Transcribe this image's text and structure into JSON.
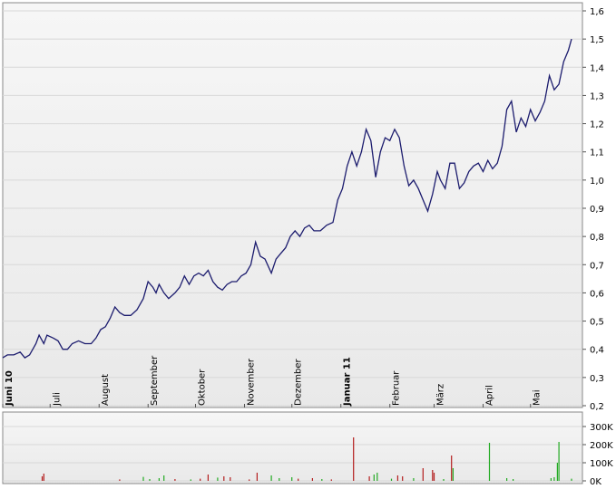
{
  "chart_data": [
    {
      "type": "line",
      "title": "",
      "xlabel": "",
      "ylabel": "",
      "ylim": [
        0.2,
        1.6
      ],
      "y_ticks": [
        "0,2",
        "0,3",
        "0,4",
        "0,5",
        "0,6",
        "0,7",
        "0,8",
        "0,9",
        "1,0",
        "1,1",
        "1,2",
        "1,3",
        "1,4",
        "1,5",
        "1,6"
      ],
      "y_tick_values": [
        0.2,
        0.3,
        0.4,
        0.5,
        0.6,
        0.7,
        0.8,
        0.9,
        1.0,
        1.1,
        1.2,
        1.3,
        1.4,
        1.5,
        1.6
      ],
      "x_range": [
        "2010-06-01",
        "2011-05-31"
      ],
      "x_ticks": [
        {
          "label": "Juni 10",
          "date": "2010-06-01",
          "bold": true
        },
        {
          "label": "Juli",
          "date": "2010-07-01",
          "bold": false
        },
        {
          "label": "August",
          "date": "2010-08-01",
          "bold": false
        },
        {
          "label": "September",
          "date": "2010-09-01",
          "bold": false
        },
        {
          "label": "Oktober",
          "date": "2010-10-01",
          "bold": false
        },
        {
          "label": "November",
          "date": "2010-11-01",
          "bold": false
        },
        {
          "label": "Dezember",
          "date": "2010-12-01",
          "bold": false
        },
        {
          "label": "Januar 11",
          "date": "2011-01-01",
          "bold": true
        },
        {
          "label": "Februar",
          "date": "2011-02-01",
          "bold": false
        },
        {
          "label": "März",
          "date": "2011-03-01",
          "bold": false
        },
        {
          "label": "April",
          "date": "2011-04-01",
          "bold": false
        },
        {
          "label": "Mai",
          "date": "2011-05-01",
          "bold": false
        }
      ],
      "grid": true,
      "line_color": "#1c1c6e",
      "series": [
        {
          "points": [
            [
              "2010-06-01",
              0.37
            ],
            [
              "2010-06-04",
              0.38
            ],
            [
              "2010-06-08",
              0.38
            ],
            [
              "2010-06-12",
              0.39
            ],
            [
              "2010-06-15",
              0.37
            ],
            [
              "2010-06-18",
              0.38
            ],
            [
              "2010-06-22",
              0.42
            ],
            [
              "2010-06-24",
              0.45
            ],
            [
              "2010-06-27",
              0.42
            ],
            [
              "2010-06-29",
              0.45
            ],
            [
              "2010-07-03",
              0.44
            ],
            [
              "2010-07-06",
              0.43
            ],
            [
              "2010-07-09",
              0.4
            ],
            [
              "2010-07-12",
              0.4
            ],
            [
              "2010-07-15",
              0.42
            ],
            [
              "2010-07-19",
              0.43
            ],
            [
              "2010-07-23",
              0.42
            ],
            [
              "2010-07-27",
              0.42
            ],
            [
              "2010-07-30",
              0.44
            ],
            [
              "2010-08-02",
              0.47
            ],
            [
              "2010-08-05",
              0.48
            ],
            [
              "2010-08-08",
              0.51
            ],
            [
              "2010-08-11",
              0.55
            ],
            [
              "2010-08-14",
              0.53
            ],
            [
              "2010-08-17",
              0.52
            ],
            [
              "2010-08-21",
              0.52
            ],
            [
              "2010-08-25",
              0.54
            ],
            [
              "2010-08-29",
              0.58
            ],
            [
              "2010-09-01",
              0.64
            ],
            [
              "2010-09-04",
              0.62
            ],
            [
              "2010-09-06",
              0.6
            ],
            [
              "2010-09-08",
              0.63
            ],
            [
              "2010-09-11",
              0.6
            ],
            [
              "2010-09-14",
              0.58
            ],
            [
              "2010-09-18",
              0.6
            ],
            [
              "2010-09-21",
              0.62
            ],
            [
              "2010-09-24",
              0.66
            ],
            [
              "2010-09-27",
              0.63
            ],
            [
              "2010-09-30",
              0.66
            ],
            [
              "2010-10-03",
              0.67
            ],
            [
              "2010-10-06",
              0.66
            ],
            [
              "2010-10-09",
              0.68
            ],
            [
              "2010-10-12",
              0.64
            ],
            [
              "2010-10-15",
              0.62
            ],
            [
              "2010-10-18",
              0.61
            ],
            [
              "2010-10-21",
              0.63
            ],
            [
              "2010-10-24",
              0.64
            ],
            [
              "2010-10-27",
              0.64
            ],
            [
              "2010-10-30",
              0.66
            ],
            [
              "2010-11-02",
              0.67
            ],
            [
              "2010-11-05",
              0.7
            ],
            [
              "2010-11-08",
              0.78
            ],
            [
              "2010-11-11",
              0.73
            ],
            [
              "2010-11-14",
              0.72
            ],
            [
              "2010-11-18",
              0.67
            ],
            [
              "2010-11-21",
              0.72
            ],
            [
              "2010-11-24",
              0.74
            ],
            [
              "2010-11-27",
              0.76
            ],
            [
              "2010-11-30",
              0.8
            ],
            [
              "2010-12-03",
              0.82
            ],
            [
              "2010-12-06",
              0.8
            ],
            [
              "2010-12-09",
              0.83
            ],
            [
              "2010-12-12",
              0.84
            ],
            [
              "2010-12-15",
              0.82
            ],
            [
              "2010-12-19",
              0.82
            ],
            [
              "2010-12-23",
              0.84
            ],
            [
              "2010-12-27",
              0.85
            ],
            [
              "2010-12-30",
              0.93
            ],
            [
              "2011-01-02",
              0.97
            ],
            [
              "2011-01-05",
              1.05
            ],
            [
              "2011-01-08",
              1.1
            ],
            [
              "2011-01-11",
              1.05
            ],
            [
              "2011-01-14",
              1.1
            ],
            [
              "2011-01-17",
              1.18
            ],
            [
              "2011-01-20",
              1.14
            ],
            [
              "2011-01-23",
              1.01
            ],
            [
              "2011-01-26",
              1.1
            ],
            [
              "2011-01-29",
              1.15
            ],
            [
              "2011-02-01",
              1.14
            ],
            [
              "2011-02-04",
              1.18
            ],
            [
              "2011-02-07",
              1.15
            ],
            [
              "2011-02-10",
              1.05
            ],
            [
              "2011-02-13",
              0.98
            ],
            [
              "2011-02-16",
              1.0
            ],
            [
              "2011-02-19",
              0.97
            ],
            [
              "2011-02-22",
              0.93
            ],
            [
              "2011-02-25",
              0.89
            ],
            [
              "2011-02-28",
              0.95
            ],
            [
              "2011-03-03",
              1.03
            ],
            [
              "2011-03-05",
              1.0
            ],
            [
              "2011-03-08",
              0.97
            ],
            [
              "2011-03-11",
              1.06
            ],
            [
              "2011-03-14",
              1.06
            ],
            [
              "2011-03-17",
              0.97
            ],
            [
              "2011-03-20",
              0.99
            ],
            [
              "2011-03-23",
              1.03
            ],
            [
              "2011-03-26",
              1.05
            ],
            [
              "2011-03-29",
              1.06
            ],
            [
              "2011-04-01",
              1.03
            ],
            [
              "2011-04-04",
              1.07
            ],
            [
              "2011-04-07",
              1.04
            ],
            [
              "2011-04-10",
              1.06
            ],
            [
              "2011-04-13",
              1.12
            ],
            [
              "2011-04-16",
              1.25
            ],
            [
              "2011-04-19",
              1.28
            ],
            [
              "2011-04-22",
              1.17
            ],
            [
              "2011-04-25",
              1.22
            ],
            [
              "2011-04-28",
              1.19
            ],
            [
              "2011-05-01",
              1.25
            ],
            [
              "2011-05-04",
              1.21
            ],
            [
              "2011-05-07",
              1.24
            ],
            [
              "2011-05-10",
              1.28
            ],
            [
              "2011-05-13",
              1.37
            ],
            [
              "2011-05-16",
              1.32
            ],
            [
              "2011-05-19",
              1.34
            ],
            [
              "2011-05-22",
              1.42
            ],
            [
              "2011-05-25",
              1.46
            ],
            [
              "2011-05-27",
              1.5
            ]
          ]
        }
      ]
    },
    {
      "type": "bar",
      "title": "",
      "xlabel": "",
      "ylabel": "",
      "ylim": [
        0,
        350000
      ],
      "y_ticks": [
        "0K",
        "100K",
        "200K",
        "300K"
      ],
      "y_tick_values": [
        0,
        100000,
        200000,
        300000
      ],
      "x_range": [
        "2010-06-01",
        "2011-05-31"
      ],
      "grid": true,
      "colors": {
        "up": "#22aa22",
        "down": "#b41e1e"
      },
      "bars": [
        {
          "date": "2010-06-26",
          "value": 25000,
          "dir": "down"
        },
        {
          "date": "2010-06-27",
          "value": 40000,
          "dir": "down"
        },
        {
          "date": "2010-08-14",
          "value": 8000,
          "dir": "down"
        },
        {
          "date": "2010-08-29",
          "value": 22000,
          "dir": "up"
        },
        {
          "date": "2010-09-02",
          "value": 10000,
          "dir": "up"
        },
        {
          "date": "2010-09-08",
          "value": 15000,
          "dir": "up"
        },
        {
          "date": "2010-09-11",
          "value": 30000,
          "dir": "up"
        },
        {
          "date": "2010-09-18",
          "value": 10000,
          "dir": "down"
        },
        {
          "date": "2010-09-28",
          "value": 8000,
          "dir": "up"
        },
        {
          "date": "2010-10-04",
          "value": 12000,
          "dir": "down"
        },
        {
          "date": "2010-10-09",
          "value": 35000,
          "dir": "down"
        },
        {
          "date": "2010-10-15",
          "value": 18000,
          "dir": "up"
        },
        {
          "date": "2010-10-19",
          "value": 25000,
          "dir": "down"
        },
        {
          "date": "2010-10-23",
          "value": 20000,
          "dir": "down"
        },
        {
          "date": "2010-11-04",
          "value": 8000,
          "dir": "down"
        },
        {
          "date": "2010-11-09",
          "value": 45000,
          "dir": "down"
        },
        {
          "date": "2010-11-18",
          "value": 30000,
          "dir": "up"
        },
        {
          "date": "2010-11-23",
          "value": 15000,
          "dir": "up"
        },
        {
          "date": "2010-12-01",
          "value": 20000,
          "dir": "up"
        },
        {
          "date": "2010-12-05",
          "value": 12000,
          "dir": "down"
        },
        {
          "date": "2010-12-14",
          "value": 15000,
          "dir": "down"
        },
        {
          "date": "2010-12-20",
          "value": 10000,
          "dir": "up"
        },
        {
          "date": "2010-12-26",
          "value": 8000,
          "dir": "down"
        },
        {
          "date": "2011-01-09",
          "value": 240000,
          "dir": "down"
        },
        {
          "date": "2011-01-19",
          "value": 25000,
          "dir": "down"
        },
        {
          "date": "2011-01-22",
          "value": 35000,
          "dir": "up"
        },
        {
          "date": "2011-01-24",
          "value": 45000,
          "dir": "up"
        },
        {
          "date": "2011-02-02",
          "value": 12000,
          "dir": "up"
        },
        {
          "date": "2011-02-06",
          "value": 30000,
          "dir": "down"
        },
        {
          "date": "2011-02-09",
          "value": 25000,
          "dir": "down"
        },
        {
          "date": "2011-02-16",
          "value": 15000,
          "dir": "up"
        },
        {
          "date": "2011-02-22",
          "value": 70000,
          "dir": "down"
        },
        {
          "date": "2011-02-28",
          "value": 60000,
          "dir": "down"
        },
        {
          "date": "2011-03-01",
          "value": 45000,
          "dir": "down"
        },
        {
          "date": "2011-03-07",
          "value": 10000,
          "dir": "up"
        },
        {
          "date": "2011-03-12",
          "value": 140000,
          "dir": "down"
        },
        {
          "date": "2011-03-13",
          "value": 70000,
          "dir": "up"
        },
        {
          "date": "2011-04-05",
          "value": 210000,
          "dir": "up"
        },
        {
          "date": "2011-04-16",
          "value": 15000,
          "dir": "up"
        },
        {
          "date": "2011-04-20",
          "value": 10000,
          "dir": "up"
        },
        {
          "date": "2011-05-14",
          "value": 15000,
          "dir": "up"
        },
        {
          "date": "2011-05-16",
          "value": 20000,
          "dir": "up"
        },
        {
          "date": "2011-05-18",
          "value": 100000,
          "dir": "up"
        },
        {
          "date": "2011-05-19",
          "value": 215000,
          "dir": "up"
        },
        {
          "date": "2011-05-27",
          "value": 12000,
          "dir": "up"
        }
      ]
    }
  ]
}
